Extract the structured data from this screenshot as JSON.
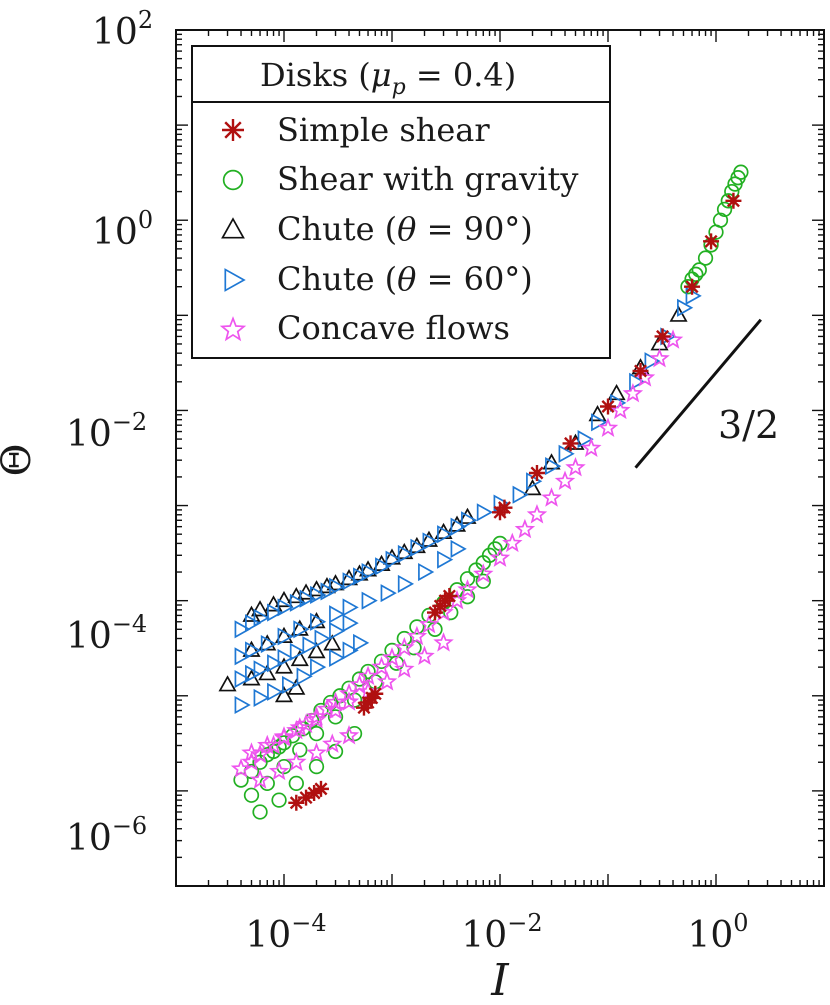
{
  "chart_data": {
    "type": "scatter",
    "title": "",
    "xlabel": "I",
    "ylabel": "Θ",
    "xscale": "log",
    "yscale": "log",
    "xlim": [
      1e-05,
      10
    ],
    "ylim": [
      1e-07,
      100
    ],
    "grid": false,
    "x_ticks": [
      {
        "value": 0.0001,
        "base": "10",
        "exp": "−4"
      },
      {
        "value": 0.01,
        "base": "10",
        "exp": "−2"
      },
      {
        "value": 1,
        "base": "10",
        "exp": "0"
      }
    ],
    "y_ticks": [
      {
        "value": 1e-06,
        "base": "10",
        "exp": "−6"
      },
      {
        "value": 0.0001,
        "base": "10",
        "exp": "−4"
      },
      {
        "value": 0.01,
        "base": "10",
        "exp": "−2"
      },
      {
        "value": 1,
        "base": "10",
        "exp": "0"
      },
      {
        "value": 100,
        "base": "10",
        "exp": "2"
      }
    ],
    "legend": {
      "placement": "top-left",
      "title_text": "Disks (",
      "title_mu": "μ",
      "title_sub": "p",
      "title_eq": " = 0.4)"
    },
    "slope_annotation": {
      "label": "3/2",
      "x_start": 0.18,
      "y_start": 0.0025,
      "x_end": 2.6,
      "y_end": 0.09
    },
    "series": [
      {
        "name": "Simple shear",
        "legend_label": "Simple shear",
        "marker": "asterisk",
        "color": "#b01010",
        "x": [
          0.00013,
          0.00016,
          0.00019,
          0.00022,
          0.00055,
          0.0006,
          0.00065,
          0.0007,
          0.0025,
          0.0028,
          0.0031,
          0.0034,
          0.01,
          0.011,
          0.022,
          0.045,
          0.1,
          0.2,
          0.32,
          0.6,
          0.9,
          1.45
        ],
        "y": [
          7.5e-07,
          8.5e-07,
          9.5e-07,
          1.05e-06,
          7.5e-06,
          8.5e-06,
          9.5e-06,
          1.05e-05,
          7.5e-05,
          8.8e-05,
          0.0001,
          0.000112,
          0.00085,
          0.00095,
          0.0022,
          0.0045,
          0.011,
          0.026,
          0.06,
          0.2,
          0.6,
          1.6
        ]
      },
      {
        "name": "Shear with gravity",
        "legend_label": "Shear with gravity",
        "marker": "circle",
        "color": "#22b022",
        "x": [
          4e-05,
          5e-05,
          6e-05,
          7e-05,
          8e-05,
          9e-05,
          0.0001,
          0.00012,
          0.00015,
          0.00018,
          0.00022,
          0.00027,
          0.00033,
          0.0004,
          0.0005,
          0.0006,
          0.0008,
          0.001,
          0.0013,
          0.0017,
          0.0022,
          0.003,
          0.004,
          0.005,
          0.006,
          0.007,
          0.008,
          0.009,
          0.01,
          5e-05,
          7e-05,
          0.0001,
          0.00014,
          0.0002,
          0.0003,
          0.00045,
          0.0007,
          0.0011,
          0.0016,
          0.0025,
          0.0035,
          0.005,
          0.007,
          6e-05,
          9e-05,
          0.00013,
          0.0002,
          0.0003,
          0.00045,
          0.7,
          0.8,
          0.9,
          1.0,
          1.1,
          1.2,
          1.3,
          1.4,
          1.5,
          1.6,
          1.7,
          0.55,
          0.6,
          0.65
        ],
        "y": [
          1.3e-06,
          1.6e-06,
          2e-06,
          2.4e-06,
          2.6e-06,
          2.9e-06,
          3.2e-06,
          3.8e-06,
          4.5e-06,
          5.5e-06,
          7e-06,
          8.5e-06,
          1e-05,
          1.2e-05,
          1.5e-05,
          1.8e-05,
          2.3e-05,
          3e-05,
          4e-05,
          5.3e-05,
          7e-05,
          9.5e-05,
          0.00013,
          0.00017,
          0.00021,
          0.00025,
          0.0003,
          0.00035,
          0.0004,
          9e-07,
          1.2e-06,
          1.8e-06,
          2.7e-06,
          4e-06,
          6e-06,
          9e-06,
          1.4e-05,
          2.2e-05,
          3.2e-05,
          5e-05,
          7.5e-05,
          0.00011,
          0.00016,
          6e-07,
          8e-07,
          1.2e-06,
          1.8e-06,
          2.6e-06,
          4e-06,
          0.3,
          0.4,
          0.55,
          0.75,
          1.0,
          1.3,
          1.6,
          2.0,
          2.4,
          2.8,
          3.2,
          0.2,
          0.24,
          0.27
        ]
      },
      {
        "name": "Chute (θ = 90°)",
        "legend_prefix": "Chute (",
        "legend_theta": "θ",
        "legend_suffix": " = 90°)",
        "marker": "triangle-up",
        "color": "#111111",
        "x": [
          5e-05,
          6e-05,
          8e-05,
          0.0001,
          0.00013,
          0.00016,
          0.0002,
          0.00025,
          0.0003,
          0.0004,
          0.0005,
          0.0006,
          0.0008,
          0.001,
          0.0013,
          0.0017,
          0.0022,
          0.003,
          0.004,
          0.005,
          5e-05,
          7e-05,
          0.0001,
          0.00014,
          0.0002,
          3e-05,
          5e-05,
          7e-05,
          0.0001,
          0.00014,
          0.0002,
          0.00028,
          0.02,
          0.03,
          0.05,
          0.08,
          0.12,
          0.2,
          0.3,
          0.45,
          0.0001,
          0.00013
        ],
        "y": [
          7e-05,
          8e-05,
          9e-05,
          0.0001,
          0.00011,
          0.00012,
          0.00013,
          0.00014,
          0.00015,
          0.00017,
          0.00019,
          0.00021,
          0.00024,
          0.00028,
          0.00032,
          0.00037,
          0.00043,
          0.00052,
          0.00062,
          0.00075,
          3e-05,
          3.5e-05,
          4.2e-05,
          5e-05,
          6e-05,
          1.3e-05,
          1.5e-05,
          1.7e-05,
          2e-05,
          2.4e-05,
          2.9e-05,
          3.5e-05,
          0.0015,
          0.0028,
          0.0045,
          0.009,
          0.015,
          0.028,
          0.05,
          0.1,
          1e-05,
          1.2e-05
        ]
      },
      {
        "name": "Chute (θ = 60°)",
        "legend_prefix": "Chute (",
        "legend_theta": "θ",
        "legend_suffix": " = 60°)",
        "marker": "triangle-right",
        "color": "#1f78d4",
        "x": [
          4e-05,
          5e-05,
          6e-05,
          8e-05,
          0.0001,
          0.00013,
          0.00016,
          0.0002,
          0.00025,
          0.0003,
          0.0004,
          0.0005,
          0.0006,
          0.0008,
          0.001,
          0.0013,
          0.0017,
          0.0022,
          0.003,
          0.004,
          0.005,
          0.007,
          0.01,
          4e-05,
          5e-05,
          7e-05,
          0.0001,
          0.00014,
          0.0002,
          0.0003,
          0.0004,
          0.0006,
          0.0009,
          0.0013,
          0.002,
          0.003,
          0.004,
          4e-05,
          5e-05,
          6e-05,
          8e-05,
          0.0001,
          0.00013,
          0.00017,
          0.00022,
          0.0003,
          0.0004,
          4e-05,
          6e-05,
          8e-05,
          0.00011,
          0.00015,
          0.0002,
          0.0003,
          0.0004,
          0.0005,
          0.015,
          0.02,
          0.03,
          0.04,
          0.06,
          0.08,
          0.12,
          0.18,
          0.25,
          0.35,
          0.5,
          0.6
        ],
        "y": [
          5e-05,
          5.8e-05,
          6.6e-05,
          7.5e-05,
          8.5e-05,
          9.5e-05,
          0.000105,
          0.000115,
          0.000125,
          0.00014,
          0.00016,
          0.00018,
          0.0002,
          0.00023,
          0.00027,
          0.00031,
          0.00036,
          0.00042,
          0.0005,
          0.0006,
          0.0007,
          0.00085,
          0.00105,
          2.6e-05,
          3e-05,
          3.5e-05,
          4.2e-05,
          5e-05,
          6e-05,
          7.2e-05,
          8.5e-05,
          0.0001,
          0.00012,
          0.00015,
          0.0002,
          0.00027,
          0.00035,
          1.5e-05,
          1.7e-05,
          1.9e-05,
          2.2e-05,
          2.5e-05,
          2.9e-05,
          3.4e-05,
          4e-05,
          4.8e-05,
          5.8e-05,
          8e-06,
          9.5e-06,
          1.1e-05,
          1.3e-05,
          1.6e-05,
          2e-05,
          2.5e-05,
          3e-05,
          3.6e-05,
          0.0013,
          0.0018,
          0.0026,
          0.0035,
          0.005,
          0.0075,
          0.012,
          0.02,
          0.033,
          0.06,
          0.12,
          0.16
        ]
      },
      {
        "name": "Concave flows",
        "legend_label": "Concave flows",
        "marker": "star",
        "color": "#ee55ee",
        "x": [
          4e-05,
          5e-05,
          6e-05,
          8e-05,
          0.0001,
          0.00013,
          0.00016,
          0.0002,
          0.00025,
          0.0003,
          0.0004,
          0.0005,
          0.0006,
          0.0008,
          0.001,
          0.0013,
          0.0017,
          0.0022,
          0.003,
          0.004,
          0.005,
          0.007,
          0.01,
          0.013,
          0.017,
          0.022,
          0.03,
          0.04,
          0.05,
          0.07,
          0.1,
          0.13,
          0.17,
          0.22,
          0.3,
          0.4,
          5e-05,
          7e-05,
          0.0001,
          0.00014,
          0.0002,
          0.0003,
          0.0004,
          0.0006,
          0.0009,
          0.0013,
          0.002,
          0.003,
          6e-05,
          9e-05,
          0.00013,
          0.0002,
          0.00028,
          0.0004
        ],
        "y": [
          1.7e-06,
          2e-06,
          2.4e-06,
          3e-06,
          3.6e-06,
          4.3e-06,
          5e-06,
          6e-06,
          7.2e-06,
          8.5e-06,
          1.05e-05,
          1.3e-05,
          1.6e-05,
          2e-05,
          2.5e-05,
          3.2e-05,
          4.2e-05,
          5.6e-05,
          7.5e-05,
          0.0001,
          0.00013,
          0.00019,
          0.00028,
          0.0004,
          0.00056,
          0.0008,
          0.0012,
          0.0018,
          0.0025,
          0.004,
          0.0065,
          0.01,
          0.015,
          0.022,
          0.035,
          0.055,
          2.5e-06,
          3e-06,
          3.7e-06,
          4.6e-06,
          5.6e-06,
          7e-06,
          8.6e-06,
          1.1e-05,
          1.4e-05,
          1.9e-05,
          2.6e-05,
          3.6e-05,
          1.3e-06,
          1.6e-06,
          2e-06,
          2.5e-06,
          3.1e-06,
          3.8e-06
        ]
      }
    ]
  }
}
